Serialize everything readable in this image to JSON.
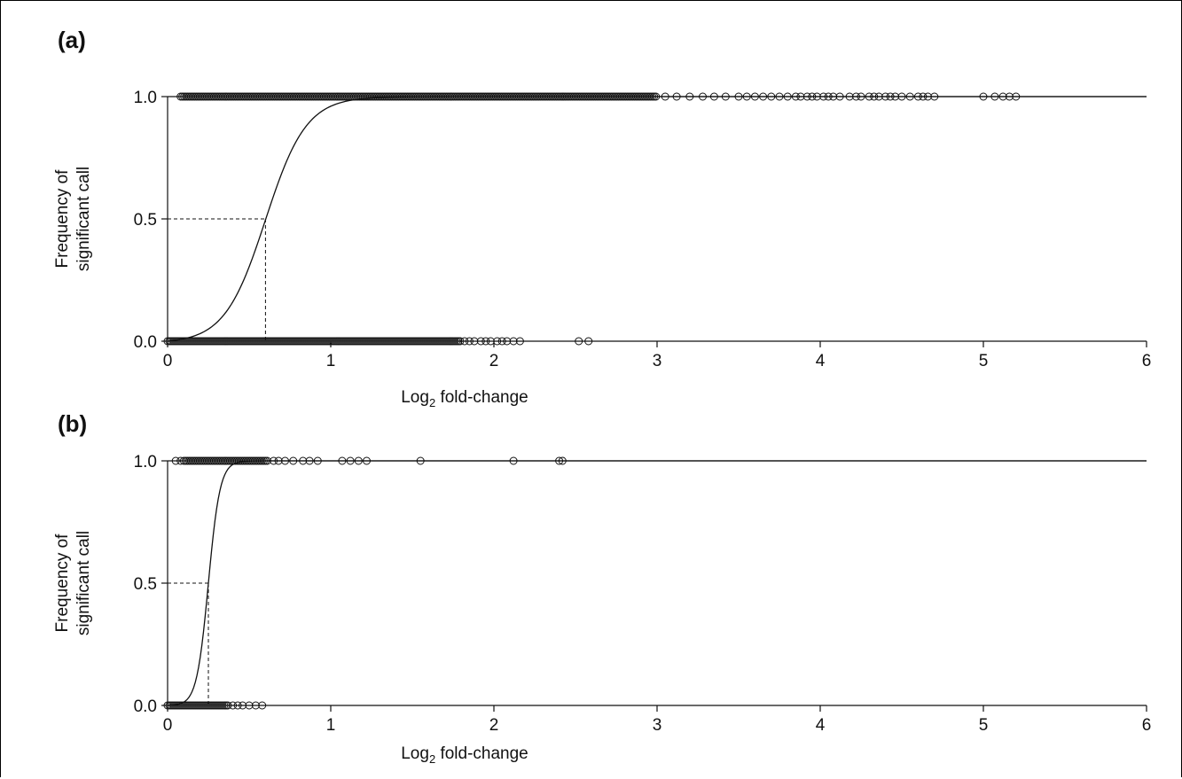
{
  "chart_data": [
    {
      "panel_label": "(a)",
      "type": "scatter",
      "xlabel": "Log₂ fold-change",
      "ylabel_lines": [
        "Frequency of",
        "significant call"
      ],
      "xlim": [
        0,
        6
      ],
      "ylim": [
        0,
        1
      ],
      "x_ticks": [
        "0",
        "1",
        "2",
        "3",
        "4",
        "5",
        "6"
      ],
      "y_ticks": [
        "0.0",
        "0.5",
        "1.0"
      ],
      "grid": false,
      "fit_curve": {
        "type": "logistic",
        "midpoint_x": 0.6,
        "slope": 8.0
      },
      "reference_line": {
        "x": 0.6,
        "y": 0.5,
        "style": "dashed"
      },
      "points_y1_dense_range": [
        0.08,
        3.0
      ],
      "points_y1_sparse_x": [
        3.05,
        3.12,
        3.2,
        3.28,
        3.35,
        3.42,
        3.5,
        3.55,
        3.6,
        3.65,
        3.7,
        3.75,
        3.8,
        3.85,
        3.88,
        3.92,
        3.95,
        3.98,
        4.02,
        4.05,
        4.08,
        4.12,
        4.18,
        4.22,
        4.25,
        4.3,
        4.33,
        4.36,
        4.4,
        4.43,
        4.46,
        4.5,
        4.55,
        4.6,
        4.63,
        4.66,
        4.7,
        5.0,
        5.07,
        5.12,
        5.16,
        5.2
      ],
      "points_y0_dense_range": [
        0.0,
        1.8
      ],
      "points_y0_sparse_x": [
        1.82,
        1.85,
        1.88,
        1.92,
        1.95,
        1.98,
        2.02,
        2.05,
        2.08,
        2.12,
        2.16,
        2.52,
        2.58
      ]
    },
    {
      "panel_label": "(b)",
      "type": "scatter",
      "xlabel": "Log₂ fold-change",
      "ylabel_lines": [
        "Frequency of",
        "significant call"
      ],
      "xlim": [
        0,
        6
      ],
      "ylim": [
        0,
        1
      ],
      "x_ticks": [
        "0",
        "1",
        "2",
        "3",
        "4",
        "5",
        "6"
      ],
      "y_ticks": [
        "0.0",
        "0.5",
        "1.0"
      ],
      "grid": false,
      "fit_curve": {
        "type": "logistic",
        "midpoint_x": 0.25,
        "slope": 28.0
      },
      "reference_line": {
        "x": 0.25,
        "y": 0.5,
        "style": "dashed"
      },
      "points_y1_dense_range": [
        0.1,
        0.62
      ],
      "points_y1_sparse_x": [
        0.05,
        0.08,
        0.65,
        0.68,
        0.72,
        0.77,
        0.83,
        0.87,
        0.92,
        1.07,
        1.12,
        1.17,
        1.22,
        1.55,
        2.12,
        2.4,
        2.42
      ],
      "points_y0_dense_range": [
        0.0,
        0.38
      ],
      "points_y0_sparse_x": [
        0.4,
        0.43,
        0.46,
        0.5,
        0.54,
        0.58
      ]
    }
  ]
}
